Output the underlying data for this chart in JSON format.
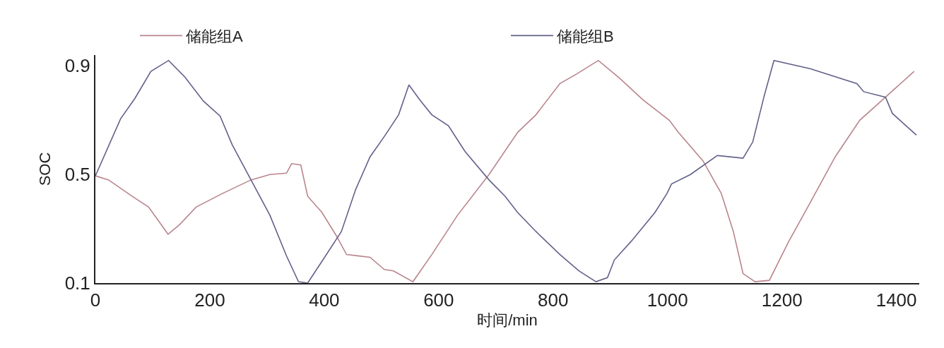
{
  "chart_data": {
    "type": "line",
    "xlabel": "时间/min",
    "ylabel": "SOC",
    "xlim": [
      0,
      1440
    ],
    "ylim": [
      0.1,
      0.94
    ],
    "xticks": [
      0,
      200,
      400,
      600,
      800,
      1000,
      1200,
      1400
    ],
    "yticks": [
      0.1,
      0.5,
      0.9
    ],
    "grid": false,
    "legend": "top",
    "marker": "none",
    "line_style": "solid",
    "series": [
      {
        "name": "储能组A",
        "color": "#b9858c",
        "x": [
          0,
          23,
          64,
          93,
          127,
          147,
          176,
          222,
          272,
          305,
          334,
          343,
          359,
          371,
          396,
          421,
          439,
          480,
          505,
          521,
          555,
          588,
          633,
          688,
          738,
          770,
          812,
          841,
          879,
          916,
          957,
          1003,
          1019,
          1062,
          1094,
          1115,
          1132,
          1153,
          1178,
          1211,
          1249,
          1293,
          1336,
          1381,
          1431
        ],
        "values": [
          0.495,
          0.48,
          0.42,
          0.38,
          0.28,
          0.315,
          0.38,
          0.43,
          0.48,
          0.5,
          0.505,
          0.54,
          0.535,
          0.42,
          0.36,
          0.275,
          0.205,
          0.195,
          0.15,
          0.145,
          0.105,
          0.205,
          0.35,
          0.5,
          0.655,
          0.72,
          0.835,
          0.87,
          0.92,
          0.855,
          0.775,
          0.7,
          0.655,
          0.55,
          0.43,
          0.29,
          0.135,
          0.105,
          0.11,
          0.25,
          0.395,
          0.565,
          0.7,
          0.785,
          0.88
        ]
      },
      {
        "name": "储能组B",
        "color": "#62618a",
        "x": [
          0,
          44,
          69,
          97,
          128,
          156,
          189,
          218,
          239,
          272,
          305,
          334,
          355,
          371,
          396,
          430,
          455,
          480,
          505,
          530,
          548,
          567,
          588,
          617,
          646,
          688,
          716,
          738,
          770,
          812,
          845,
          875,
          895,
          907,
          937,
          978,
          999,
          1007,
          1040,
          1087,
          1132,
          1149,
          1169,
          1186,
          1249,
          1331,
          1343,
          1381,
          1393,
          1435
        ],
        "values": [
          0.495,
          0.705,
          0.78,
          0.88,
          0.92,
          0.86,
          0.77,
          0.715,
          0.61,
          0.48,
          0.35,
          0.2,
          0.105,
          0.1,
          0.18,
          0.29,
          0.445,
          0.565,
          0.64,
          0.72,
          0.83,
          0.775,
          0.72,
          0.68,
          0.585,
          0.48,
          0.42,
          0.36,
          0.29,
          0.205,
          0.145,
          0.105,
          0.12,
          0.185,
          0.255,
          0.36,
          0.43,
          0.465,
          0.5,
          0.57,
          0.56,
          0.62,
          0.79,
          0.92,
          0.89,
          0.835,
          0.805,
          0.785,
          0.725,
          0.645
        ]
      }
    ]
  }
}
